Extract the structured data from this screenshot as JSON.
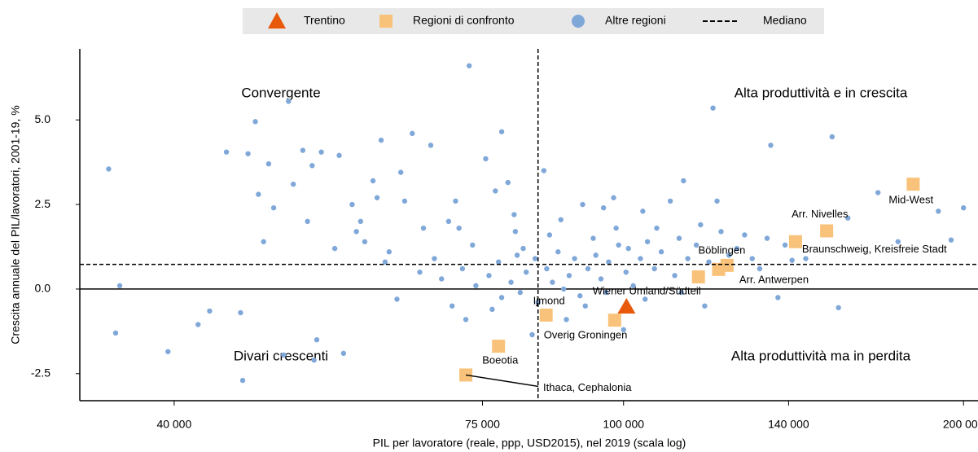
{
  "chart_data": {
    "type": "scatter",
    "x_label": "PIL per lavoratore (reale, ppp, USD2015), nel 2019 (scala log)",
    "y_label": "Crescita annuale del PIL/lavoratori, 2001-19, %",
    "xlog": true,
    "xlim": [
      33000,
      206000
    ],
    "ylim": [
      -3.3,
      7.1
    ],
    "xticks": [
      {
        "value": 40000,
        "label": "40 000"
      },
      {
        "value": 75000,
        "label": "75 000"
      },
      {
        "value": 100000,
        "label": "100 000"
      },
      {
        "value": 140000,
        "label": "140 000"
      },
      {
        "value": 200000,
        "label": "200 000"
      }
    ],
    "yticks": [
      {
        "value": -2.5,
        "label": "-2.5"
      },
      {
        "value": 0,
        "label": "0.0"
      },
      {
        "value": 2.5,
        "label": "2.5"
      },
      {
        "value": 5,
        "label": "5.0"
      }
    ],
    "median": {
      "name": "Mediano",
      "x": 84000,
      "y": 0.73
    },
    "annotations": [
      "Convergente",
      "Alta produttività e in crescita",
      "Divari crescenti",
      "Alta produttività ma in perdita"
    ],
    "series": [
      {
        "name": "Altre regioni",
        "marker": "circle",
        "color": "#7fa8d9",
        "x": [
          35000,
          35800,
          35500,
          39500,
          43000,
          42000,
          44500,
          46500,
          47200,
          48000,
          48500,
          50500,
          50000,
          46000,
          45800,
          52000,
          51000,
          53000,
          53500,
          54000,
          56000,
          57500,
          58000,
          60000,
          60500,
          61000,
          62000,
          63500,
          64000,
          65000,
          66500,
          67500,
          68000,
          70000,
          71000,
          72000,
          73000,
          75500,
          77000,
          78000,
          79000,
          80000,
          81500,
          83000,
          85000,
          88000,
          92000,
          94000,
          96000,
          98000,
          101000,
          104000,
          107000,
          110000,
          113000,
          117000,
          120000,
          121000,
          124000,
          128000,
          132000,
          135000,
          137000,
          141000,
          145000,
          153000,
          158000,
          168000,
          175000,
          190000,
          195000,
          200000,
          155000,
          118000,
          100000,
          89000,
          84000,
          78000,
          72500,
          70500,
          69000,
          74000,
          76000,
          77500,
          79500,
          80500,
          82000,
          83500,
          85500,
          86500,
          87500,
          89500,
          90500,
          91500,
          93000,
          94500,
          95500,
          97000,
          99000,
          100500,
          102000,
          103500,
          105000,
          106500,
          108000,
          111000,
          112000,
          114000,
          116000,
          119000,
          122000,
          126000,
          130000,
          134000,
          139000,
          73500,
          71500,
          66000,
          63000,
          61500,
          59000,
          55500,
          52500,
          49000,
          47500,
          53200,
          56500,
          58500,
          76500,
          81000,
          88500,
          92500,
          96500,
          104500,
          112500,
          98500,
          86000,
          80200
        ],
        "values": [
          3.55,
          0.1,
          -1.3,
          -1.85,
          -0.65,
          -1.05,
          4.05,
          4.0,
          4.95,
          1.4,
          3.7,
          5.55,
          -1.95,
          -2.7,
          -0.7,
          4.1,
          3.1,
          3.65,
          -1.5,
          4.05,
          3.95,
          2.5,
          1.7,
          3.2,
          2.7,
          4.4,
          1.1,
          3.45,
          2.6,
          4.6,
          1.8,
          4.25,
          0.9,
          2.0,
          2.6,
          0.6,
          6.6,
          3.85,
          2.9,
          4.65,
          3.15,
          2.2,
          1.2,
          -1.35,
          3.5,
          2.05,
          2.5,
          1.5,
          2.4,
          2.7,
          1.2,
          2.3,
          1.8,
          2.6,
          3.2,
          1.9,
          5.35,
          2.6,
          1.0,
          1.6,
          0.6,
          4.25,
          -0.25,
          0.85,
          0.9,
          4.5,
          2.1,
          2.85,
          1.4,
          2.3,
          1.45,
          2.4,
          -0.55,
          -0.5,
          -1.2,
          -0.9,
          -0.4,
          -0.25,
          -0.9,
          -0.5,
          0.3,
          0.1,
          0.4,
          0.8,
          0.2,
          1.0,
          0.5,
          0.9,
          0.6,
          0.2,
          1.1,
          0.4,
          0.9,
          -0.2,
          0.6,
          1.0,
          0.3,
          0.8,
          1.3,
          0.5,
          0.1,
          0.9,
          1.4,
          0.6,
          1.1,
          0.4,
          1.5,
          0.9,
          1.3,
          0.8,
          1.7,
          1.2,
          0.9,
          1.5,
          1.3,
          1.3,
          1.8,
          0.5,
          -0.3,
          0.8,
          1.4,
          1.2,
          2.0,
          2.4,
          2.8,
          -2.1,
          -1.9,
          2.0,
          -0.6,
          -0.1,
          0.0,
          -0.5,
          -0.1,
          -0.3,
          -0.1,
          1.8,
          1.6,
          1.7
        ]
      },
      {
        "name": "Regioni di confronto",
        "marker": "square",
        "color": "#f9c27a",
        "x": [
          116500,
          121400,
          123500,
          142000,
          151300,
          180500,
          85400,
          98200,
          77500,
          72500
        ],
        "values": [
          0.36,
          0.58,
          0.7,
          1.4,
          1.72,
          3.1,
          -0.77,
          -0.92,
          -1.69,
          -2.54
        ],
        "labels": [
          "Wiener Umland/Südteil",
          "Böblingen",
          "Arr. Antwerpen",
          "Braunschweig, Kreisfreie Stadt",
          "Arr. Nivelles",
          "Mid-West",
          "Ijmond",
          "Overig Groningen",
          "Boeotia",
          "Ithaca, Cephalonia"
        ]
      },
      {
        "name": "Trentino",
        "marker": "triangle",
        "color": "#e8590c",
        "x": [
          100600
        ],
        "values": [
          -0.53
        ]
      }
    ]
  }
}
